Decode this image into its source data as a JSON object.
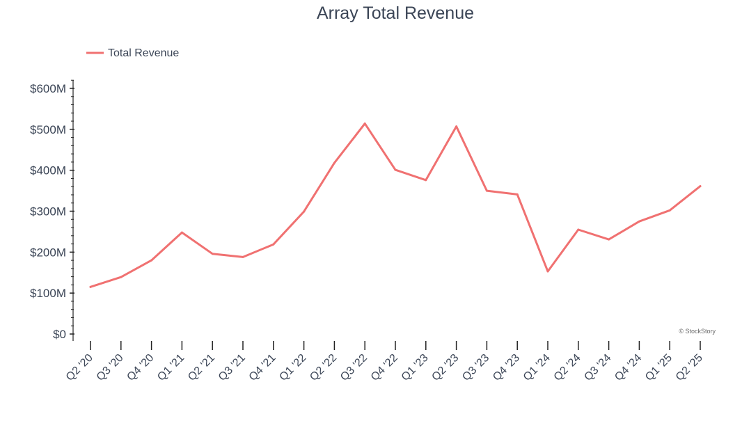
{
  "chart_data": {
    "type": "line",
    "title": "Array Total Revenue",
    "xlabel": "",
    "ylabel": "",
    "categories": [
      "Q2 '20",
      "Q3 '20",
      "Q4 '20",
      "Q1 '21",
      "Q2 '21",
      "Q3 '21",
      "Q4 '21",
      "Q1 '22",
      "Q2 '22",
      "Q3 '22",
      "Q4 '22",
      "Q1 '23",
      "Q2 '23",
      "Q3 '23",
      "Q4 '23",
      "Q1 '24",
      "Q2 '24",
      "Q3 '24",
      "Q4 '24",
      "Q1 '25",
      "Q2 '25"
    ],
    "series": [
      {
        "name": "Total Revenue",
        "color": "#f07171",
        "values": [
          115,
          139,
          180,
          248,
          196,
          188,
          219,
          299,
          418,
          514,
          401,
          376,
          507,
          350,
          341,
          153,
          255,
          231,
          275,
          302,
          361
        ]
      }
    ],
    "ylim": [
      0,
      600
    ],
    "yticks": [
      0,
      100,
      200,
      300,
      400,
      500,
      600
    ],
    "ytick_labels": [
      "$0",
      "$100M",
      "$200M",
      "$300M",
      "$400M",
      "$500M",
      "$600M"
    ],
    "grid": false,
    "legend_position": "top-left"
  },
  "watermark": "© StockStory",
  "colors": {
    "title": "#3b4556",
    "axis_text": "#3b4556",
    "axis_line": "#222222"
  }
}
